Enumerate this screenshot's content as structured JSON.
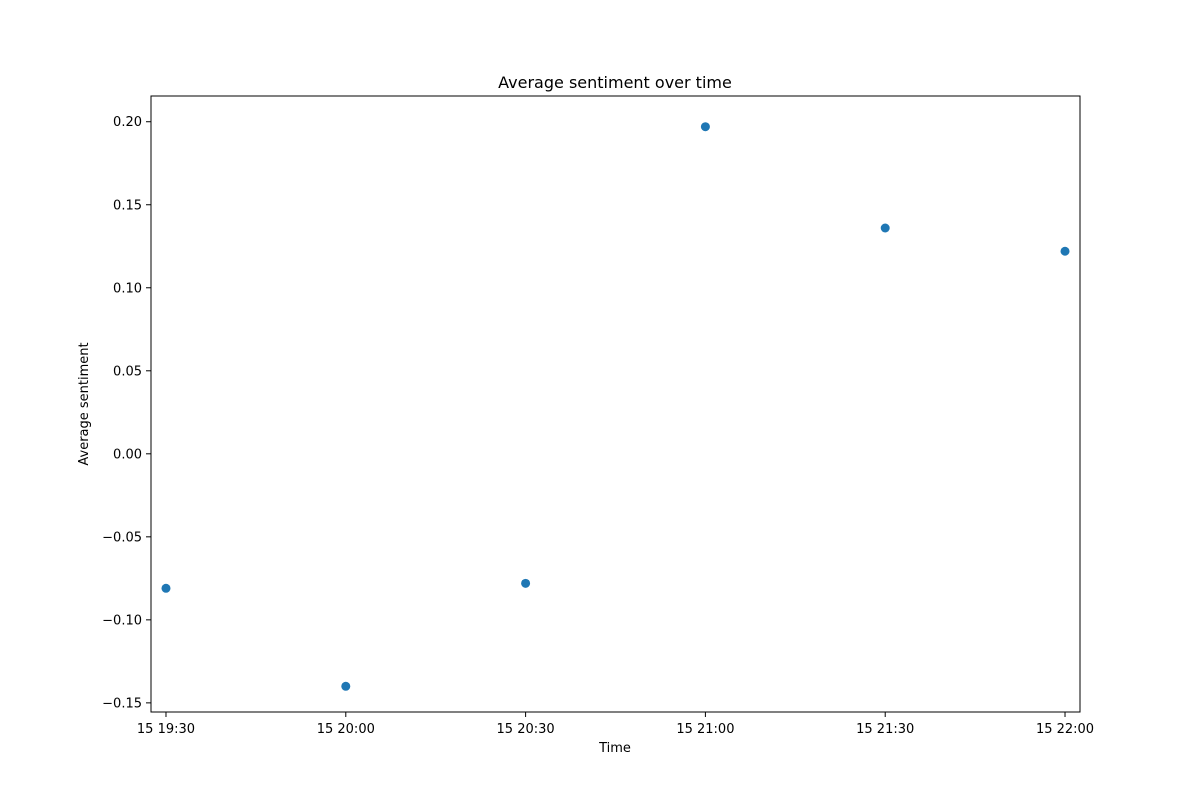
{
  "chart_data": {
    "type": "scatter",
    "title": "Average sentiment over time",
    "xlabel": "Time",
    "ylabel": "Average sentiment",
    "x_ticks": [
      "15 19:30",
      "15 20:00",
      "15 20:30",
      "15 21:00",
      "15 21:30",
      "15 22:00"
    ],
    "y_ticks": [
      "−0.15",
      "−0.10",
      "−0.05",
      "0.00",
      "0.05",
      "0.10",
      "0.15",
      "0.20"
    ],
    "y_tick_values": [
      -0.15,
      -0.1,
      -0.05,
      0.0,
      0.05,
      0.1,
      0.15,
      0.2
    ],
    "xlim": [
      "15 19:27.5",
      "15 22:02.5"
    ],
    "ylim": [
      -0.1555,
      0.2155
    ],
    "grid": false,
    "legend": "none",
    "series": [
      {
        "color": "#1f77b4",
        "x": [
          "15 19:30",
          "15 20:00",
          "15 20:30",
          "15 21:00",
          "15 21:30",
          "15 22:00"
        ],
        "y": [
          -0.081,
          -0.14,
          -0.078,
          0.197,
          0.136,
          0.122
        ]
      }
    ]
  }
}
